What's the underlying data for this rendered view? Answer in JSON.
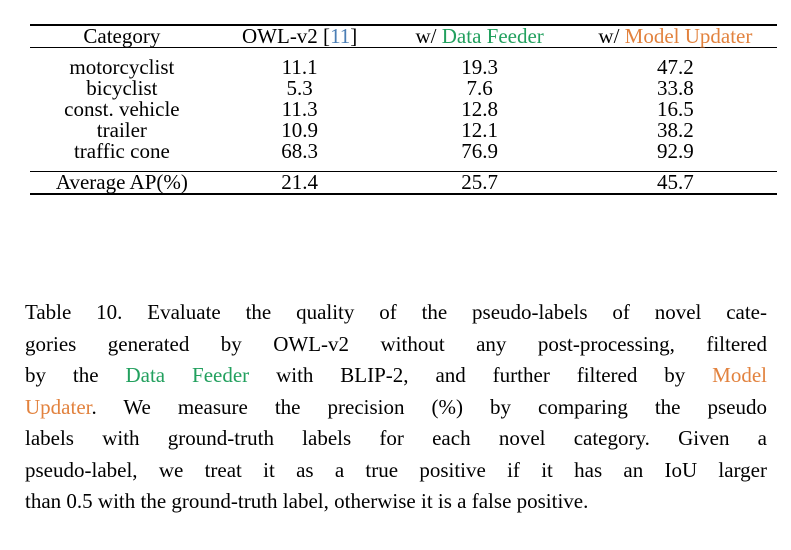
{
  "colors": {
    "green": "#22a05e",
    "orange": "#e2823e",
    "blue": "#4a7eb5",
    "text": "#000000",
    "background": "#ffffff"
  },
  "table": {
    "header": [
      {
        "parts": [
          {
            "t": "Category"
          }
        ]
      },
      {
        "parts": [
          {
            "t": "OWL-v2 ["
          },
          {
            "t": "11",
            "c": "blue"
          },
          {
            "t": "]"
          }
        ]
      },
      {
        "parts": [
          {
            "t": "w/ "
          },
          {
            "t": "Data Feeder",
            "c": "green"
          }
        ]
      },
      {
        "parts": [
          {
            "t": "w/ "
          },
          {
            "t": "Model Updater",
            "c": "orange"
          }
        ]
      }
    ],
    "rows": [
      {
        "category": "motorcyclist",
        "values": [
          "11.1",
          "19.3",
          "47.2"
        ]
      },
      {
        "category": "bicyclist",
        "values": [
          "5.3",
          "7.6",
          "33.8"
        ]
      },
      {
        "category": "const. vehicle",
        "values": [
          "11.3",
          "12.8",
          "16.5"
        ]
      },
      {
        "category": "trailer",
        "values": [
          "10.9",
          "12.1",
          "38.2"
        ]
      },
      {
        "category": "traffic cone",
        "values": [
          "68.3",
          "76.9",
          "92.9"
        ]
      }
    ],
    "footer": {
      "label": "Average AP(%)",
      "values": [
        "21.4",
        "25.7",
        "45.7"
      ]
    }
  },
  "caption": {
    "lines": [
      {
        "segs": [
          {
            "t": "Table 10. Evaluate the quality of the pseudo-labels of novel cate-"
          }
        ]
      },
      {
        "segs": [
          {
            "t": "gories generated by OWL-v2 without any post-processing, filtered"
          }
        ]
      },
      {
        "segs": [
          {
            "t": "by the "
          },
          {
            "t": "Data Feeder",
            "c": "green"
          },
          {
            "t": " with BLIP-2, and further filtered by ",
            "c": "text"
          },
          {
            "t": "Model",
            "c": "orange"
          }
        ]
      },
      {
        "segs": [
          {
            "t": "Updater",
            "c": "orange"
          },
          {
            "t": ". We measure the precision (%) by comparing the pseudo",
            "c": "text"
          }
        ]
      },
      {
        "segs": [
          {
            "t": "labels with ground-truth labels for each novel category. Given a"
          }
        ]
      },
      {
        "segs": [
          {
            "t": "pseudo-label, we treat it as a true positive if it has an IoU larger"
          }
        ]
      },
      {
        "segs": [
          {
            "t": "than 0.5 with the ground-truth label, otherwise it is a false positive."
          }
        ]
      }
    ]
  }
}
